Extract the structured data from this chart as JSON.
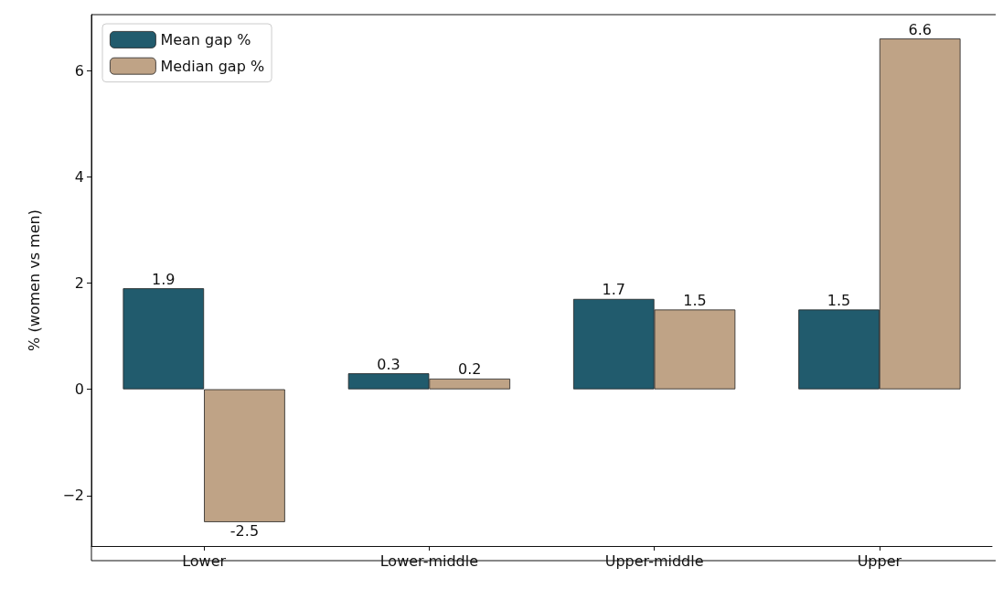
{
  "chart_data": {
    "type": "bar",
    "ylabel": "% (women vs men)",
    "categories": [
      "Lower",
      "Lower-middle",
      "Upper-middle",
      "Upper"
    ],
    "series": [
      {
        "name": "Mean gap %",
        "color": "#215b6d",
        "values": [
          1.9,
          0.3,
          1.7,
          1.5
        ]
      },
      {
        "name": "Median gap %",
        "color": "#bfa386",
        "values": [
          -2.5,
          0.2,
          1.5,
          6.6
        ]
      }
    ],
    "ylim": [
      -2.95,
      7.05
    ],
    "yticks": [
      {
        "value": -2,
        "label": "−2"
      },
      0,
      2,
      4,
      6
    ],
    "data_labels": true,
    "legend": "top left",
    "grid": false
  }
}
